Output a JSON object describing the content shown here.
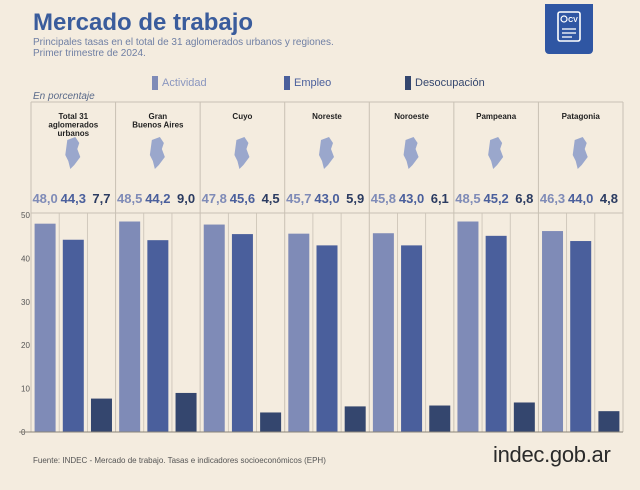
{
  "header": {
    "title": "Mercado de trabajo",
    "subtitle_line1": "Principales tasas en el total de 31 aglomerados urbanos y regiones.",
    "subtitle_line2": "Primer trimestre de 2024.",
    "badge_text": "CV",
    "unit_label": "En porcentaje"
  },
  "footer": {
    "source": "Fuente: INDEC - Mercado de trabajo. Tasas e indicadores socioeconómicos (EPH)",
    "brand_main": "indec",
    "brand_suffix": ".gob.ar"
  },
  "colors": {
    "background": "#f4ecdf",
    "activity": "#7f8bb7",
    "employment": "#4a5f9c",
    "unemployment": "#34466e",
    "title": "#3a5c9c",
    "grid": "#c9c1b4"
  },
  "chart_data": {
    "type": "bar",
    "title": "Mercado de trabajo",
    "ylabel": "En porcentaje",
    "ylim": [
      0,
      50
    ],
    "yticks": [
      0,
      10,
      20,
      30,
      40,
      50
    ],
    "categories": [
      "Total 31 aglomerados urbanos",
      "Gran Buenos Aires",
      "Cuyo",
      "Noreste",
      "Noroeste",
      "Pampeana",
      "Patagonia"
    ],
    "category_lines": [
      [
        "Total 31",
        "aglomerados",
        "urbanos"
      ],
      [
        "Gran",
        "Buenos Aires"
      ],
      [
        "Cuyo"
      ],
      [
        "Noreste"
      ],
      [
        "Noroeste"
      ],
      [
        "Pampeana"
      ],
      [
        "Patagonia"
      ]
    ],
    "series": [
      {
        "name": "Actividad",
        "values": [
          48.0,
          48.5,
          47.8,
          45.7,
          45.8,
          48.5,
          46.3
        ]
      },
      {
        "name": "Empleo",
        "values": [
          44.3,
          44.2,
          45.6,
          43.0,
          43.0,
          45.2,
          44.0
        ]
      },
      {
        "name": "Desocupación",
        "values": [
          7.7,
          9.0,
          4.5,
          5.9,
          6.1,
          6.8,
          4.8
        ]
      }
    ],
    "value_labels": [
      [
        "48,0",
        "44,3",
        "7,7"
      ],
      [
        "48,5",
        "44,2",
        "9,0"
      ],
      [
        "47,8",
        "45,6",
        "4,5"
      ],
      [
        "45,7",
        "43,0",
        "5,9"
      ],
      [
        "45,8",
        "43,0",
        "6,1"
      ],
      [
        "48,5",
        "45,2",
        "6,8"
      ],
      [
        "46,3",
        "44,0",
        "4,8"
      ]
    ],
    "legend": [
      "Actividad",
      "Empleo",
      "Desocupación"
    ],
    "legend_position": "top",
    "grid": true
  }
}
